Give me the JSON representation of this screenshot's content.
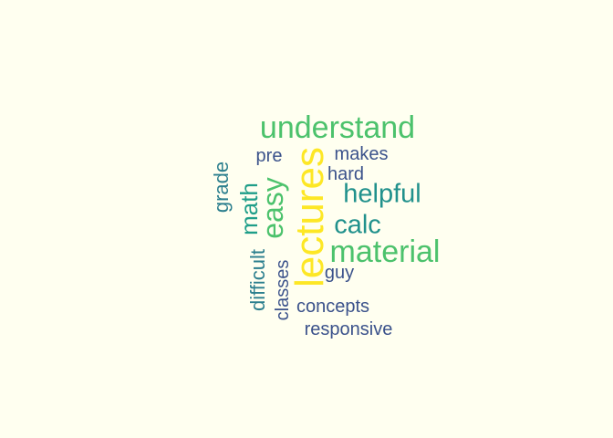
{
  "words": [
    {
      "id": "understand",
      "text": "understand",
      "color": "#4cc26c"
    },
    {
      "id": "pre",
      "text": "pre",
      "color": "#3b528b"
    },
    {
      "id": "makes",
      "text": "makes",
      "color": "#3b528b"
    },
    {
      "id": "hard",
      "text": "hard",
      "color": "#3b528b"
    },
    {
      "id": "helpful",
      "text": "helpful",
      "color": "#21918c"
    },
    {
      "id": "calc",
      "text": "calc",
      "color": "#21918c"
    },
    {
      "id": "material",
      "text": "material",
      "color": "#4cc26c"
    },
    {
      "id": "guy",
      "text": "guy",
      "color": "#3b528b"
    },
    {
      "id": "concepts",
      "text": "concepts",
      "color": "#3b528b"
    },
    {
      "id": "responsive",
      "text": "responsive",
      "color": "#3b528b"
    },
    {
      "id": "lectures",
      "text": "lectures",
      "color": "#fde725"
    },
    {
      "id": "easy",
      "text": "easy",
      "color": "#4cc26c"
    },
    {
      "id": "math",
      "text": "math",
      "color": "#1f9e89"
    },
    {
      "id": "grade",
      "text": "grade",
      "color": "#2c7f8e"
    },
    {
      "id": "difficult",
      "text": "difficult",
      "color": "#2c7f8e"
    },
    {
      "id": "classes",
      "text": "classes",
      "color": "#3b528b"
    }
  ]
}
